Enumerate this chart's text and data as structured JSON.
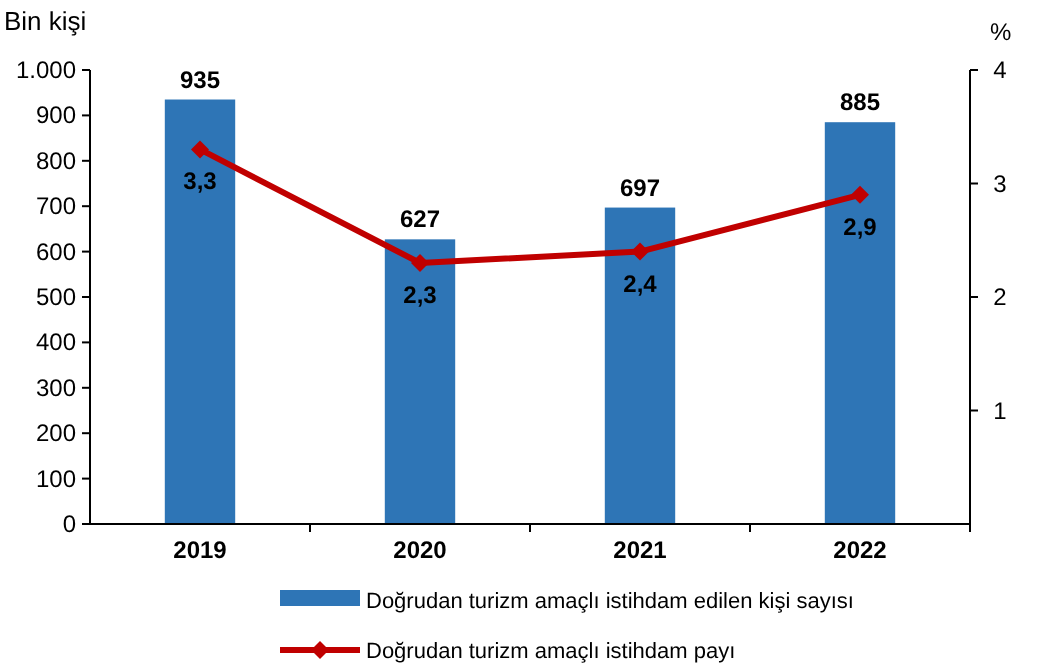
{
  "chart_data": {
    "type": "bar",
    "ylabel": "Bin kişi",
    "y2label": "%",
    "categories": [
      "2019",
      "2020",
      "2021",
      "2022"
    ],
    "series": [
      {
        "name": "Doğrudan turizm amaçlı istihdam edilen kişi sayısı",
        "color": "#2e75b6",
        "values": [
          935,
          627,
          697,
          885
        ],
        "value_labels": [
          "935",
          "627",
          "697",
          "885"
        ]
      },
      {
        "type": "line",
        "name": "Doğrudan turizm amaçlı istihdam payı",
        "color": "#c00000",
        "axis": "y2",
        "marker": "diamond",
        "values": [
          3.3,
          2.3,
          2.4,
          2.9
        ],
        "value_labels": [
          "3,3",
          "2,3",
          "2,4",
          "2,9"
        ]
      }
    ],
    "ylim": [
      0,
      1000
    ],
    "yticks": [
      0,
      100,
      200,
      300,
      400,
      500,
      600,
      700,
      800,
      900,
      {
        "value": 1000,
        "label": "1.000"
      }
    ],
    "y2lim": [
      0,
      4
    ],
    "y2ticks": [
      1,
      2,
      3,
      4
    ],
    "legend": "bottom"
  }
}
